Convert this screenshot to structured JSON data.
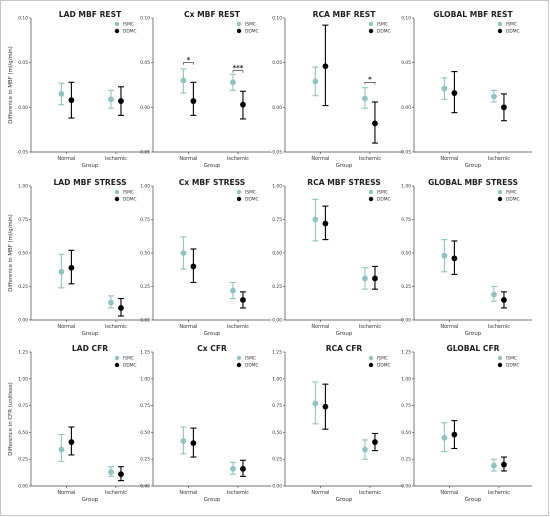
{
  "colors": {
    "ISMC": "#8ec5c3",
    "DDMC": "#000000"
  },
  "chart_data": [
    {
      "type": "scatter",
      "title": "LAD MBF REST",
      "xlabel": "Group",
      "ylabel": "Difference in MBF (ml/g/min)",
      "categories": [
        "Normal",
        "Ischemic"
      ],
      "ylim": [
        -0.05,
        0.1
      ],
      "yticks": [
        "-0.05",
        "0.00",
        "0.05",
        "0.10"
      ],
      "yticks_v": [
        -0.05,
        0,
        0.05,
        0.1
      ],
      "legend": [
        "ISMC",
        "DDMC"
      ],
      "series": [
        {
          "name": "ISMC",
          "values": [
            0.015,
            0.009
          ],
          "err_low": [
            0.003,
            -0.001
          ],
          "err_high": [
            0.027,
            0.019
          ]
        },
        {
          "name": "DDMC",
          "values": [
            0.008,
            0.007
          ],
          "err_low": [
            -0.012,
            -0.009
          ],
          "err_high": [
            0.028,
            0.023
          ]
        }
      ],
      "annotations": []
    },
    {
      "type": "scatter",
      "title": "Cx MBF REST",
      "xlabel": "Group",
      "ylabel": "",
      "categories": [
        "Normal",
        "Ischemic"
      ],
      "ylim": [
        -0.05,
        0.1
      ],
      "yticks": [
        "-0.05",
        "0.00",
        "0.05",
        "0.10"
      ],
      "yticks_v": [
        -0.05,
        0,
        0.05,
        0.1
      ],
      "legend": [
        "ISMC",
        "DDMC"
      ],
      "series": [
        {
          "name": "ISMC",
          "values": [
            0.03,
            0.028
          ],
          "err_low": [
            0.016,
            0.019
          ],
          "err_high": [
            0.043,
            0.037
          ]
        },
        {
          "name": "DDMC",
          "values": [
            0.007,
            0.003
          ],
          "err_low": [
            -0.009,
            -0.013
          ],
          "err_high": [
            0.028,
            0.018
          ]
        }
      ],
      "annotations": [
        {
          "group": 0,
          "label": "*",
          "y": 0.05
        },
        {
          "group": 1,
          "label": "***",
          "y": 0.041
        }
      ]
    },
    {
      "type": "scatter",
      "title": "RCA MBF REST",
      "xlabel": "Group",
      "ylabel": "",
      "categories": [
        "Normal",
        "Ischemic"
      ],
      "ylim": [
        -0.05,
        0.1
      ],
      "yticks": [
        "-0.05",
        "0.00",
        "0.05",
        "0.10"
      ],
      "yticks_v": [
        -0.05,
        0,
        0.05,
        0.1
      ],
      "legend": [
        "ISMC",
        "DDMC"
      ],
      "series": [
        {
          "name": "ISMC",
          "values": [
            0.029,
            0.01
          ],
          "err_low": [
            0.013,
            -0.001
          ],
          "err_high": [
            0.045,
            0.022
          ]
        },
        {
          "name": "DDMC",
          "values": [
            0.046,
            -0.018
          ],
          "err_low": [
            0.002,
            -0.04
          ],
          "err_high": [
            0.092,
            0.006
          ]
        }
      ],
      "annotations": [
        {
          "group": 1,
          "label": "*",
          "y": 0.028
        }
      ]
    },
    {
      "type": "scatter",
      "title": "GLOBAL MBF REST",
      "xlabel": "Group",
      "ylabel": "",
      "categories": [
        "Normal",
        "Ischemic"
      ],
      "ylim": [
        -0.05,
        0.1
      ],
      "yticks": [
        "-0.05",
        "0.00",
        "0.05",
        "0.10"
      ],
      "yticks_v": [
        -0.05,
        0,
        0.05,
        0.1
      ],
      "legend": [
        "ISMC",
        "DDMC"
      ],
      "series": [
        {
          "name": "ISMC",
          "values": [
            0.021,
            0.012
          ],
          "err_low": [
            0.009,
            0.006
          ],
          "err_high": [
            0.033,
            0.019
          ]
        },
        {
          "name": "DDMC",
          "values": [
            0.016,
            0.0
          ],
          "err_low": [
            -0.006,
            -0.015
          ],
          "err_high": [
            0.04,
            0.015
          ]
        }
      ],
      "annotations": []
    },
    {
      "type": "scatter",
      "title": "LAD MBF STRESS",
      "xlabel": "Group",
      "ylabel": "Difference in MBF (ml/g/min)",
      "categories": [
        "Normal",
        "Ischemic"
      ],
      "ylim": [
        0,
        1.0
      ],
      "yticks": [
        "0.00",
        "0.25",
        "0.50",
        "0.75",
        "1.00"
      ],
      "yticks_v": [
        0,
        0.25,
        0.5,
        0.75,
        1.0
      ],
      "legend": [
        "ISMC",
        "DDMC"
      ],
      "series": [
        {
          "name": "ISMC",
          "values": [
            0.36,
            0.13
          ],
          "err_low": [
            0.24,
            0.09
          ],
          "err_high": [
            0.49,
            0.18
          ]
        },
        {
          "name": "DDMC",
          "values": [
            0.39,
            0.09
          ],
          "err_low": [
            0.27,
            0.03
          ],
          "err_high": [
            0.52,
            0.16
          ]
        }
      ],
      "annotations": []
    },
    {
      "type": "scatter",
      "title": "Cx MBF STRESS",
      "xlabel": "Group",
      "ylabel": "",
      "categories": [
        "Normal",
        "Ischemic"
      ],
      "ylim": [
        0,
        1.0
      ],
      "yticks": [
        "0.00",
        "0.25",
        "0.50",
        "0.75",
        "1.00"
      ],
      "yticks_v": [
        0,
        0.25,
        0.5,
        0.75,
        1.0
      ],
      "legend": [
        "ISMC",
        "DDMC"
      ],
      "series": [
        {
          "name": "ISMC",
          "values": [
            0.5,
            0.22
          ],
          "err_low": [
            0.38,
            0.16
          ],
          "err_high": [
            0.62,
            0.28
          ]
        },
        {
          "name": "DDMC",
          "values": [
            0.4,
            0.15
          ],
          "err_low": [
            0.28,
            0.09
          ],
          "err_high": [
            0.53,
            0.21
          ]
        }
      ],
      "annotations": []
    },
    {
      "type": "scatter",
      "title": "RCA MBF STRESS",
      "xlabel": "Group",
      "ylabel": "",
      "categories": [
        "Normal",
        "Ischemic"
      ],
      "ylim": [
        0,
        1.0
      ],
      "yticks": [
        "0.00",
        "0.25",
        "0.50",
        "0.75",
        "1.00"
      ],
      "yticks_v": [
        0,
        0.25,
        0.5,
        0.75,
        1.0
      ],
      "legend": [
        "ISMC",
        "DDMC"
      ],
      "series": [
        {
          "name": "ISMC",
          "values": [
            0.75,
            0.31
          ],
          "err_low": [
            0.59,
            0.23
          ],
          "err_high": [
            0.9,
            0.39
          ]
        },
        {
          "name": "DDMC",
          "values": [
            0.72,
            0.31
          ],
          "err_low": [
            0.6,
            0.23
          ],
          "err_high": [
            0.85,
            0.4
          ]
        }
      ],
      "annotations": []
    },
    {
      "type": "scatter",
      "title": "GLOBAL MBF STRESS",
      "xlabel": "Group",
      "ylabel": "",
      "categories": [
        "Normal",
        "Ischemic"
      ],
      "ylim": [
        0,
        1.0
      ],
      "yticks": [
        "0.00",
        "0.25",
        "0.50",
        "0.75",
        "1.00"
      ],
      "yticks_v": [
        0,
        0.25,
        0.5,
        0.75,
        1.0
      ],
      "legend": [
        "ISMC",
        "DDMC"
      ],
      "series": [
        {
          "name": "ISMC",
          "values": [
            0.48,
            0.19
          ],
          "err_low": [
            0.36,
            0.14
          ],
          "err_high": [
            0.6,
            0.25
          ]
        },
        {
          "name": "DDMC",
          "values": [
            0.46,
            0.15
          ],
          "err_low": [
            0.34,
            0.09
          ],
          "err_high": [
            0.59,
            0.21
          ]
        }
      ],
      "annotations": []
    },
    {
      "type": "scatter",
      "title": "LAD CFR",
      "xlabel": "Group",
      "ylabel": "Difference in CFR (unitless)",
      "categories": [
        "Normal",
        "Ischemic"
      ],
      "ylim": [
        0,
        1.25
      ],
      "yticks": [
        "0.00",
        "0.25",
        "0.50",
        "0.75",
        "1.00",
        "1.25"
      ],
      "yticks_v": [
        0,
        0.25,
        0.5,
        0.75,
        1.0,
        1.25
      ],
      "legend": [
        "ISMC",
        "DDMC"
      ],
      "series": [
        {
          "name": "ISMC",
          "values": [
            0.34,
            0.13
          ],
          "err_low": [
            0.23,
            0.09
          ],
          "err_high": [
            0.48,
            0.18
          ]
        },
        {
          "name": "DDMC",
          "values": [
            0.41,
            0.11
          ],
          "err_low": [
            0.29,
            0.05
          ],
          "err_high": [
            0.55,
            0.18
          ]
        }
      ],
      "annotations": []
    },
    {
      "type": "scatter",
      "title": "Cx CFR",
      "xlabel": "Group",
      "ylabel": "",
      "categories": [
        "Normal",
        "Ischemic"
      ],
      "ylim": [
        0,
        1.25
      ],
      "yticks": [
        "0.00",
        "0.25",
        "0.50",
        "0.75",
        "1.00",
        "1.25"
      ],
      "yticks_v": [
        0,
        0.25,
        0.5,
        0.75,
        1.0,
        1.25
      ],
      "legend": [
        "ISMC",
        "DDMC"
      ],
      "series": [
        {
          "name": "ISMC",
          "values": [
            0.42,
            0.16
          ],
          "err_low": [
            0.3,
            0.11
          ],
          "err_high": [
            0.55,
            0.22
          ]
        },
        {
          "name": "DDMC",
          "values": [
            0.4,
            0.16
          ],
          "err_low": [
            0.27,
            0.09
          ],
          "err_high": [
            0.54,
            0.24
          ]
        }
      ],
      "annotations": []
    },
    {
      "type": "scatter",
      "title": "RCA CFR",
      "xlabel": "Group",
      "ylabel": "",
      "categories": [
        "Normal",
        "Ischemic"
      ],
      "ylim": [
        0,
        1.25
      ],
      "yticks": [
        "0.00",
        "0.25",
        "0.50",
        "0.75",
        "1.00",
        "1.25"
      ],
      "yticks_v": [
        0,
        0.25,
        0.5,
        0.75,
        1.0,
        1.25
      ],
      "legend": [
        "ISMC",
        "DDMC"
      ],
      "series": [
        {
          "name": "ISMC",
          "values": [
            0.77,
            0.34
          ],
          "err_low": [
            0.58,
            0.25
          ],
          "err_high": [
            0.97,
            0.43
          ]
        },
        {
          "name": "DDMC",
          "values": [
            0.74,
            0.41
          ],
          "err_low": [
            0.53,
            0.33
          ],
          "err_high": [
            0.95,
            0.49
          ]
        }
      ],
      "annotations": []
    },
    {
      "type": "scatter",
      "title": "GLOBAL CFR",
      "xlabel": "Group",
      "ylabel": "",
      "categories": [
        "Normal",
        "Ischemic"
      ],
      "ylim": [
        0,
        1.25
      ],
      "yticks": [
        "0.00",
        "0.25",
        "0.50",
        "0.75",
        "1.00",
        "1.25"
      ],
      "yticks_v": [
        0,
        0.25,
        0.5,
        0.75,
        1.0,
        1.25
      ],
      "legend": [
        "ISMC",
        "DDMC"
      ],
      "series": [
        {
          "name": "ISMC",
          "values": [
            0.45,
            0.19
          ],
          "err_low": [
            0.32,
            0.14
          ],
          "err_high": [
            0.59,
            0.25
          ]
        },
        {
          "name": "DDMC",
          "values": [
            0.48,
            0.2
          ],
          "err_low": [
            0.35,
            0.14
          ],
          "err_high": [
            0.61,
            0.27
          ]
        }
      ],
      "annotations": []
    }
  ]
}
